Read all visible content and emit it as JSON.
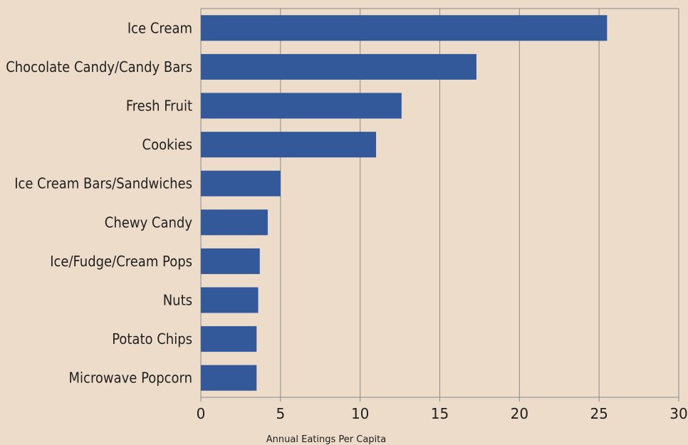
{
  "chart_data": {
    "type": "bar",
    "orientation": "horizontal",
    "categories": [
      "Ice Cream",
      "Chocolate Candy/Candy Bars",
      "Fresh Fruit",
      "Cookies",
      "Ice Cream Bars/Sandwiches",
      "Chewy Candy",
      "Ice/Fudge/Cream Pops",
      "Nuts",
      "Potato Chips",
      "Microwave Popcorn"
    ],
    "values": [
      25.5,
      17.3,
      12.6,
      11.0,
      5.0,
      4.2,
      3.7,
      3.6,
      3.5,
      3.5
    ],
    "xlabel": "Annual Eatings Per Capita",
    "ylabel": "",
    "xlim": [
      0,
      30
    ],
    "xticks": [
      "0",
      "5",
      "10",
      "15",
      "20",
      "25",
      "30"
    ],
    "grid": true,
    "colors": {
      "bar": "#34599b",
      "background": "#ecdcc9",
      "gridline": "#8a8a8a",
      "text": "#1f1f1f"
    }
  }
}
